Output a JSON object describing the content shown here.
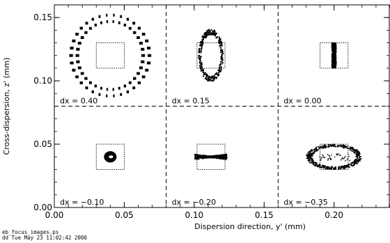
{
  "chart_data": {
    "type": "scatter",
    "xlabel": "Dispersion direction, y' (mm)",
    "ylabel": "Cross-dispersion, z' (mm)",
    "xlim": [
      0.0,
      0.24
    ],
    "ylim": [
      0.0,
      0.16
    ],
    "xticks": [
      "0.00",
      "0.05",
      "0.10",
      "0.15",
      "0.20"
    ],
    "yticks": [
      "0.00",
      "0.05",
      "0.10",
      "0.15"
    ],
    "xtick_values": [
      0.0,
      0.05,
      0.1,
      0.15,
      0.2
    ],
    "ytick_values": [
      0.0,
      0.05,
      0.1,
      0.15
    ],
    "grid_dividers": {
      "x": [
        0.08,
        0.16
      ],
      "y": [
        0.08
      ]
    },
    "panels": [
      {
        "label": "dx =  0.40",
        "center": [
          0.04,
          0.12
        ],
        "box": [
          0.03,
          0.05,
          0.11,
          0.13
        ],
        "spot": "ring",
        "rx": 0.028,
        "rz": 0.032
      },
      {
        "label": "dx =  0.15",
        "center": [
          0.112,
          0.12
        ],
        "box": [
          0.102,
          0.122,
          0.11,
          0.13
        ],
        "spot": "ellipse",
        "rx": 0.0085,
        "rz": 0.02
      },
      {
        "label": "dx =  0.00",
        "center": [
          0.2,
          0.12
        ],
        "box": [
          0.19,
          0.21,
          0.11,
          0.13
        ],
        "spot": "line",
        "rx": 0.0015,
        "rz": 0.01
      },
      {
        "label": "dx = −0.10",
        "center": [
          0.04,
          0.04
        ],
        "box": [
          0.03,
          0.05,
          0.03,
          0.05
        ],
        "spot": "blob",
        "rx": 0.0045,
        "rz": 0.0045
      },
      {
        "label": "dx = −0.20",
        "center": [
          0.112,
          0.04
        ],
        "box": [
          0.102,
          0.122,
          0.03,
          0.05
        ],
        "spot": "bowtie",
        "rx": 0.0115,
        "rz": 0.0015
      },
      {
        "label": "dx = −0.35",
        "center": [
          0.2,
          0.04
        ],
        "box": [
          0.19,
          0.21,
          0.03,
          0.05
        ],
        "spot": "ellipse-wide",
        "rx": 0.019,
        "rz": 0.0095
      }
    ],
    "grid": false,
    "legend": "none"
  },
  "footer": {
    "file": "eb_focus_images.ps",
    "stamp": "dd Tue May 23 11:02:42 2000"
  }
}
